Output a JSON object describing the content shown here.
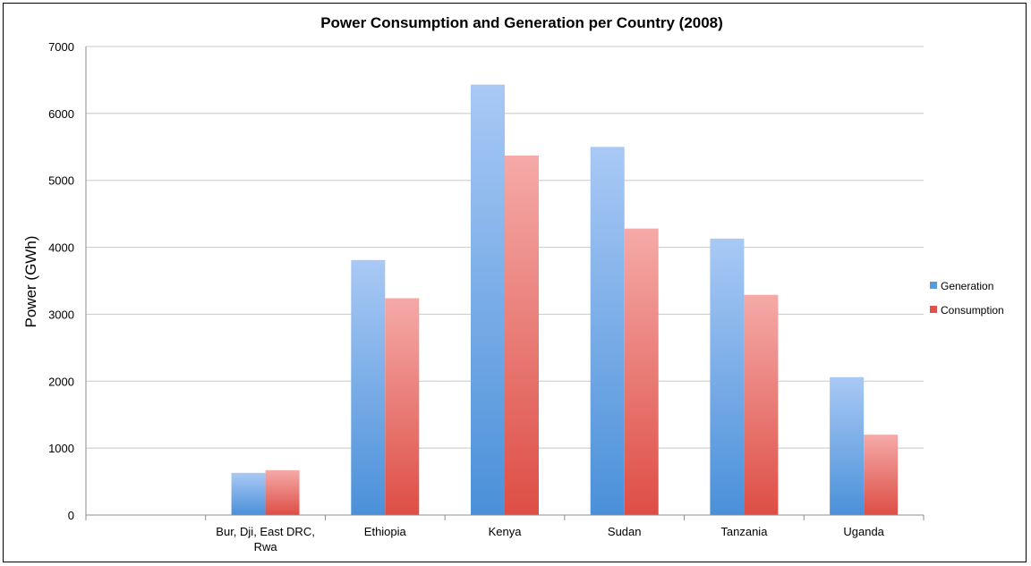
{
  "chart_data": {
    "type": "bar",
    "title": "Power Consumption and Generation per Country (2008)",
    "xlabel": "",
    "ylabel": "Power (GWh)",
    "ylim": [
      0,
      7000
    ],
    "yticks": [
      0,
      1000,
      2000,
      3000,
      4000,
      5000,
      6000,
      7000
    ],
    "grid": true,
    "legend_position": "right",
    "categories": [
      "",
      "Bur, Dji, East DRC, Rwa",
      "Ethiopia",
      "Kenya",
      "Sudan",
      "Tanzania",
      "Uganda"
    ],
    "category_lines": [
      [],
      [
        "Bur, Dji, East DRC,",
        "Rwa"
      ],
      [
        "Ethiopia"
      ],
      [
        "Kenya"
      ],
      [
        "Sudan"
      ],
      [
        "Tanzania"
      ],
      [
        "Uganda"
      ]
    ],
    "series": [
      {
        "name": "Generation",
        "values": [
          null,
          630,
          3810,
          6430,
          5500,
          4130,
          2060
        ],
        "color": "#5b9bd5"
      },
      {
        "name": "Consumption",
        "values": [
          null,
          670,
          3240,
          5370,
          4280,
          3290,
          1200
        ],
        "color": "#e0524b"
      }
    ]
  }
}
